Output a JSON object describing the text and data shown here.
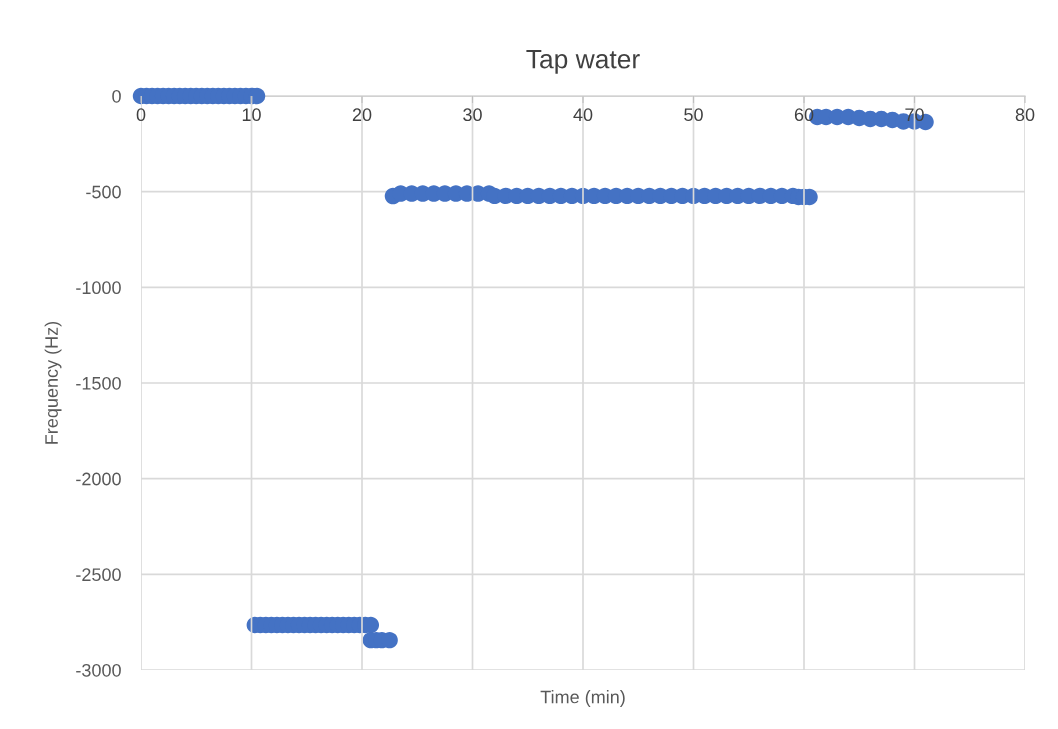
{
  "chart_data": {
    "type": "scatter",
    "title": "Tap water",
    "xlabel": "Time (min)",
    "ylabel": "Frequency (Hz)",
    "xlim": [
      0,
      80
    ],
    "xticks": [
      0,
      10,
      20,
      30,
      40,
      50,
      60,
      70,
      80
    ],
    "ylim": [
      -3000,
      0
    ],
    "yticks": [
      -3000,
      -2500,
      -2000,
      -1500,
      -1000,
      -500,
      0
    ],
    "grid": true,
    "marker": "circle",
    "series": [
      {
        "color": "#4472c4",
        "x": [
          0,
          0.5,
          1,
          1.5,
          2,
          2.5,
          3,
          3.5,
          4,
          4.5,
          5,
          5.5,
          6,
          6.5,
          7,
          7.5,
          8,
          8.5,
          9,
          9.5,
          10,
          10.5,
          10.3,
          10.8,
          11.3,
          11.8,
          12.3,
          12.8,
          13.3,
          13.8,
          14.3,
          14.8,
          15.3,
          15.8,
          16.3,
          16.8,
          17.3,
          17.8,
          18.3,
          18.8,
          19.3,
          19.8,
          20.3,
          20.8,
          20.8,
          21.3,
          21.8,
          22.5,
          22.8,
          23.5,
          24.5,
          25.5,
          26.5,
          27.5,
          28.5,
          29.5,
          30.5,
          31.5,
          32,
          33,
          34,
          35,
          36,
          37,
          38,
          39,
          40,
          41,
          42,
          43,
          44,
          45,
          46,
          47,
          48,
          49,
          50,
          51,
          52,
          53,
          54,
          55,
          56,
          57,
          58,
          59,
          59.5,
          60,
          60.5,
          61.2,
          62,
          63,
          64,
          65,
          66,
          67,
          68,
          69,
          70,
          71
        ],
        "values": [
          0,
          0,
          0,
          0,
          0,
          0,
          0,
          0,
          0,
          0,
          0,
          0,
          0,
          0,
          0,
          0,
          0,
          0,
          0,
          0,
          0,
          0,
          -2765,
          -2765,
          -2765,
          -2765,
          -2765,
          -2765,
          -2765,
          -2765,
          -2765,
          -2765,
          -2765,
          -2765,
          -2765,
          -2765,
          -2765,
          -2765,
          -2765,
          -2765,
          -2765,
          -2765,
          -2765,
          -2765,
          -2844,
          -2844,
          -2844,
          -2844,
          -523,
          -510,
          -510,
          -510,
          -510,
          -510,
          -510,
          -510,
          -510,
          -510,
          -522,
          -522,
          -522,
          -522,
          -522,
          -522,
          -522,
          -522,
          -522,
          -522,
          -522,
          -522,
          -522,
          -522,
          -522,
          -522,
          -522,
          -522,
          -522,
          -522,
          -522,
          -522,
          -522,
          -522,
          -522,
          -522,
          -522,
          -522,
          -528,
          -528,
          -528,
          -110,
          -110,
          -110,
          -110,
          -115,
          -120,
          -120,
          -125,
          -133,
          -133,
          -136
        ]
      }
    ]
  }
}
